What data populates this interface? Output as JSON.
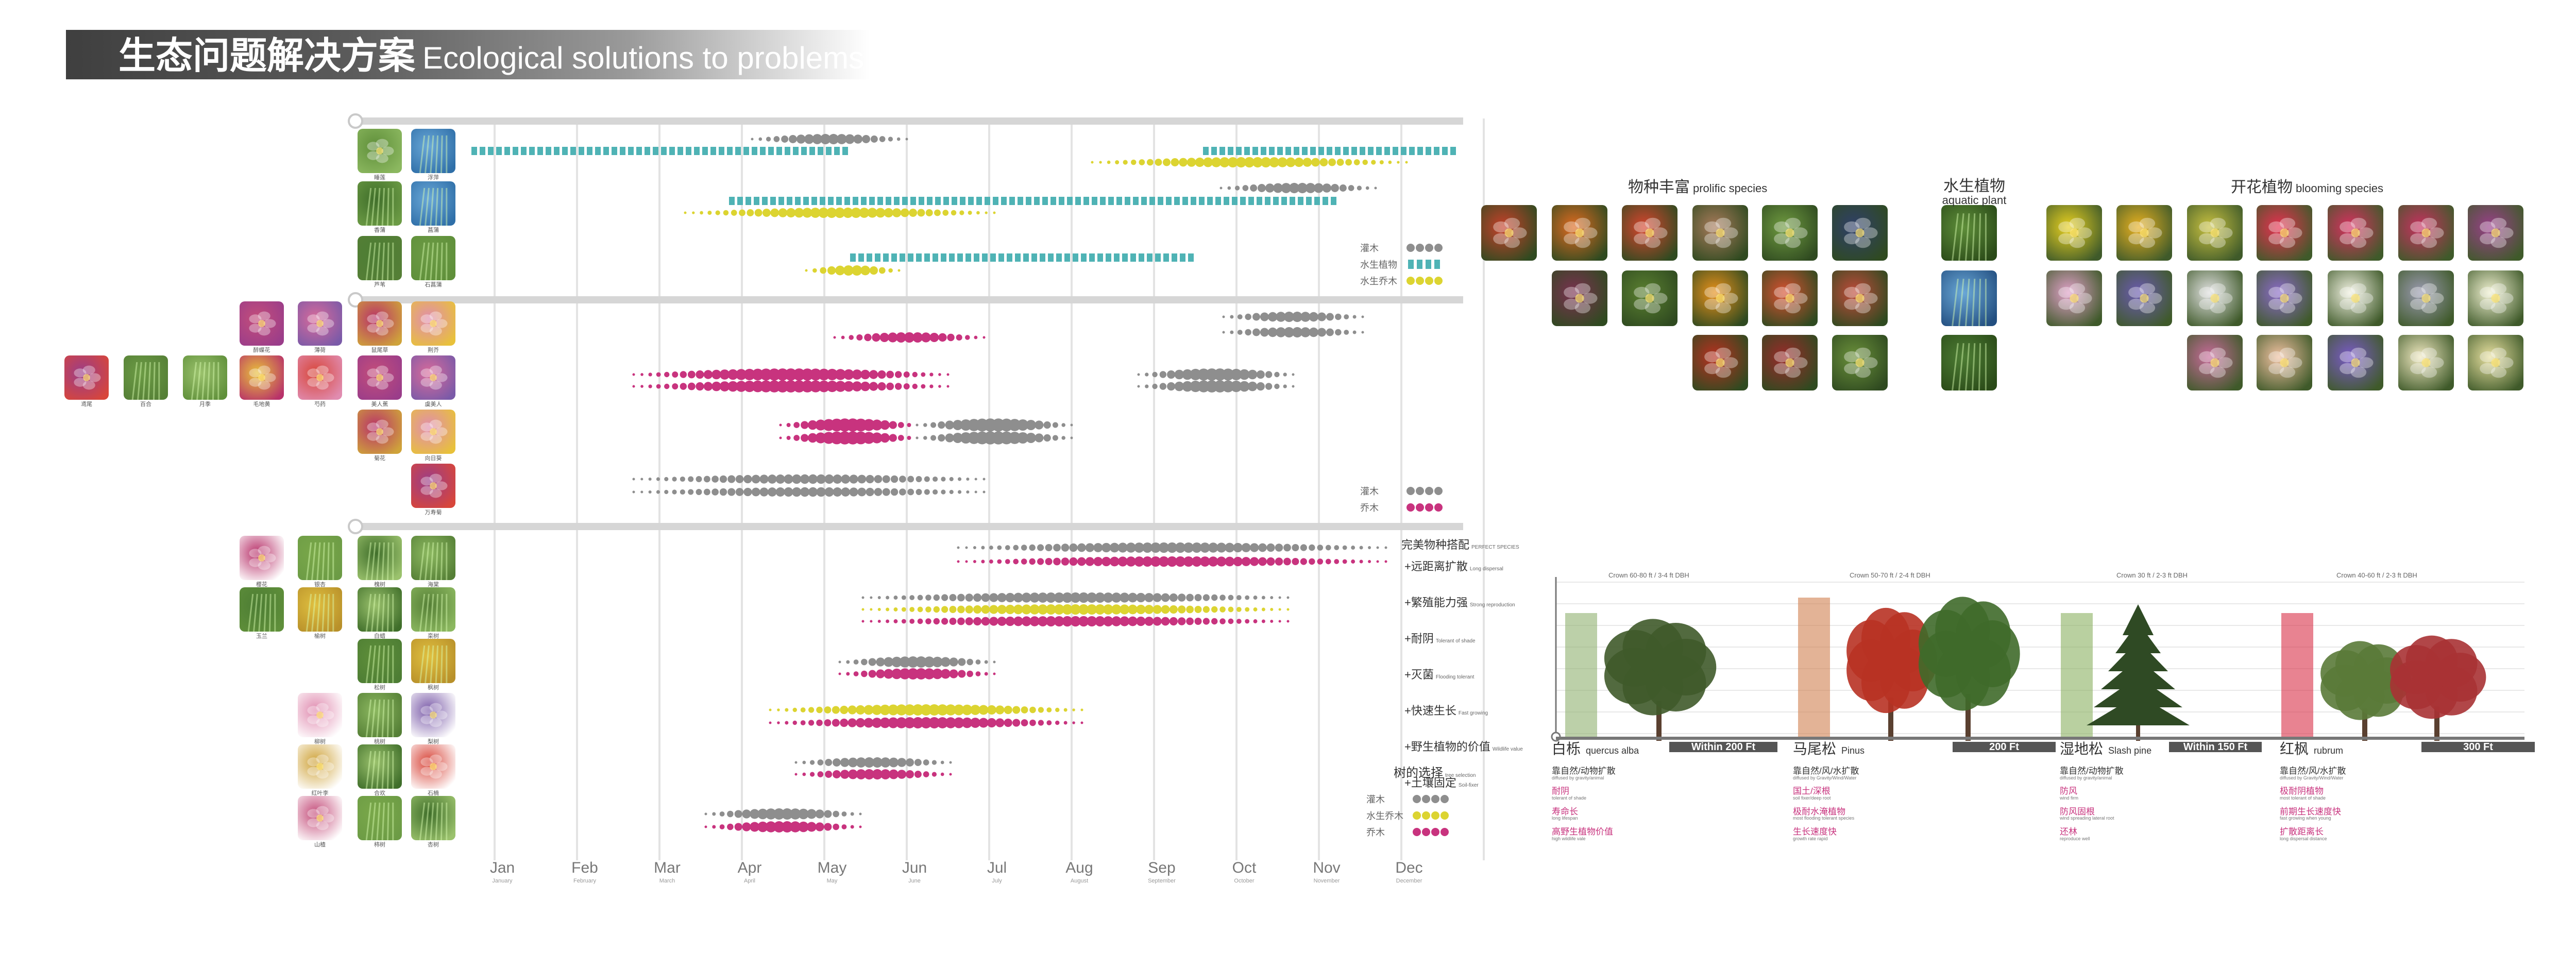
{
  "title": {
    "zh": "生态问题解决方案",
    "en": "Ecological solutions to problems"
  },
  "months": [
    {
      "label": "Jan",
      "sub": "January"
    },
    {
      "label": "Feb",
      "sub": "February"
    },
    {
      "label": "Mar",
      "sub": "March"
    },
    {
      "label": "Apr",
      "sub": "April"
    },
    {
      "label": "May",
      "sub": "May"
    },
    {
      "label": "Jun",
      "sub": "June"
    },
    {
      "label": "Jul",
      "sub": "July"
    },
    {
      "label": "Aug",
      "sub": "August"
    },
    {
      "label": "Sep",
      "sub": "September"
    },
    {
      "label": "Oct",
      "sub": "October"
    },
    {
      "label": "Nov",
      "sub": "November"
    },
    {
      "label": "Dec",
      "sub": "December"
    }
  ],
  "colors": {
    "teal": "#4fb3b5",
    "yellow": "#dcd431",
    "gray": "#8e8e8e",
    "pink": "#c8337e"
  },
  "section1": {
    "plants": [
      "睡莲",
      "浮萍",
      "香蒲",
      "菖蒲",
      "芦苇",
      "石菖蒲",
      "芦竹"
    ],
    "legend": [
      "灌木",
      "水生植物",
      "水生乔木"
    ]
  },
  "section2": {
    "plants": [
      "醉蝶花",
      "薄荷",
      "鼠尾草",
      "荆芥",
      "鸢尾",
      "百合",
      "月季",
      "毛地黄",
      "芍药",
      "美人蕉",
      "虞美人",
      "菊花",
      "向日葵",
      "万寿菊",
      "金盏菊",
      "石竹",
      "杜鹃"
    ],
    "legend": [
      "灌木",
      "乔木"
    ]
  },
  "section3": {
    "plants": [
      "樱花",
      "银杏",
      "槐树",
      "海棠",
      "玉兰",
      "榆树",
      "白蜡",
      "栾树",
      "松树",
      "枫树",
      "柳树",
      "桃树",
      "梨树",
      "红叶李",
      "合欢",
      "石楠",
      "山楂",
      "柿树",
      "杏树",
      "紫薇",
      "桂花"
    ],
    "legend": [
      "灌木",
      "水生乔木",
      "乔木"
    ],
    "heading": {
      "zh": "完美物种搭配",
      "en": "PERFECT SPECIES"
    },
    "features": [
      {
        "zh": "+远距离扩散",
        "en": "Long dispersal"
      },
      {
        "zh": "+繁殖能力强",
        "en": "Strong reproduction"
      },
      {
        "zh": "+耐阴",
        "en": "Tolerant of shade"
      },
      {
        "zh": "+灭菌",
        "en": "Flooding tolerant"
      },
      {
        "zh": "+快速生长",
        "en": "Fast growing"
      },
      {
        "zh": "+野生植物的价值",
        "en": "Wildlife value"
      },
      {
        "zh": "+土壤固定",
        "en": "Soil-fixer"
      }
    ],
    "selection": {
      "zh": "树的选择",
      "en": "tree selection"
    }
  },
  "species": {
    "prolific": {
      "zh": "物种丰富",
      "en": "prolific species"
    },
    "aquatic": {
      "zh": "水生植物",
      "en": "aquatic plant"
    },
    "blooming": {
      "zh": "开花植物",
      "en": "blooming species"
    }
  },
  "trees": [
    {
      "zh": "白栎",
      "en": "quercus alba",
      "dist": "Within 200 Ft",
      "crown": "Crown 60-80 ft / 3-4 ft DBH",
      "attrs": [
        {
          "zh": "靠自然/动物扩散",
          "en": "diffused by gravity/animal",
          "pink": false
        },
        {
          "zh": "耐阴",
          "en": "tolerant of shade",
          "pink": true
        },
        {
          "zh": "寿命长",
          "en": "long lifespan",
          "pink": true
        },
        {
          "zh": "高野生植物价值",
          "en": "high wildlife vale",
          "pink": true
        }
      ]
    },
    {
      "zh": "马尾松",
      "en": "Pinus",
      "dist": "200 Ft",
      "crown": "Crown 50-70 ft / 2-4 ft DBH",
      "attrs": [
        {
          "zh": "靠自然/风/水扩散",
          "en": "diffused by Gravity/Wind/Water",
          "pink": false
        },
        {
          "zh": "国土/深根",
          "en": "soil fixer/deep root",
          "pink": true
        },
        {
          "zh": "极耐水淹植物",
          "en": "most flooding tolerant species",
          "pink": true
        },
        {
          "zh": "生长速度快",
          "en": "growth rate rapid",
          "pink": true
        }
      ]
    },
    {
      "zh": "湿地松",
      "en": "Slash pine",
      "dist": "Within 150 Ft",
      "crown": "Crown 30 ft / 2-3 ft DBH",
      "attrs": [
        {
          "zh": "靠自然/动物扩散",
          "en": "diffused by gravity/animal",
          "pink": false
        },
        {
          "zh": "防风",
          "en": "wind firm",
          "pink": true
        },
        {
          "zh": "防风固根",
          "en": "wind spreading lateral root",
          "pink": true
        },
        {
          "zh": "还林",
          "en": "reproduce well",
          "pink": true
        }
      ]
    },
    {
      "zh": "红枫",
      "en": "rubrum",
      "dist": "300 Ft",
      "crown": "Crown 40-60 ft / 2-3 ft DBH",
      "attrs": [
        {
          "zh": "靠自然/风/水扩散",
          "en": "diffused by Gravity/Wind/Water",
          "pink": false
        },
        {
          "zh": "极耐阴植物",
          "en": "most tolerant of shade",
          "pink": true
        },
        {
          "zh": "前期生长速度快",
          "en": "fast growing when young",
          "pink": true
        },
        {
          "zh": "扩散距离长",
          "en": "long dispersal distance",
          "pink": true
        }
      ]
    }
  ]
}
